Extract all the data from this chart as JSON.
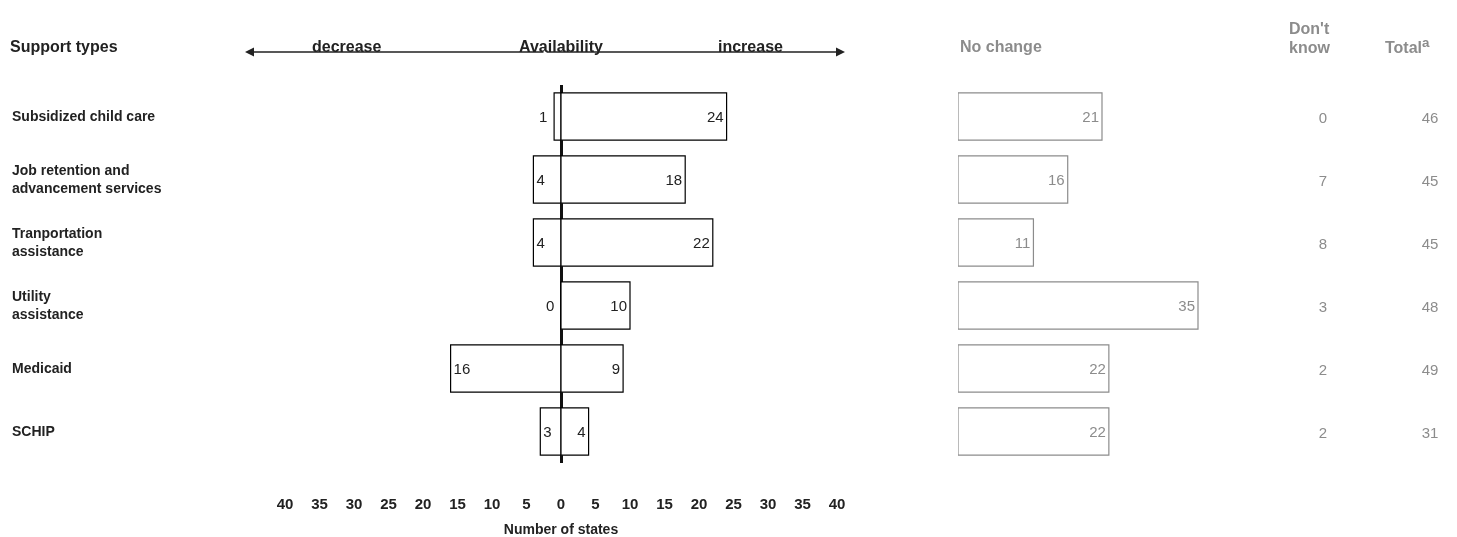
{
  "chart_data": [
    {
      "type": "bar",
      "orientation": "horizontal",
      "title": "Availability",
      "ylabel": "Support types",
      "xlabel": "Number of states",
      "annotations": [
        "decrease",
        "increase"
      ],
      "categories": [
        "Subsidized child care",
        "Job retention and\nadvancement services",
        "Tranportation\nassistance",
        "Utility\nassistance",
        "Medicaid",
        "SCHIP"
      ],
      "series": [
        {
          "color": "#000000",
          "values": [
            1,
            4,
            4,
            0,
            16,
            3
          ],
          "base": [
            -1,
            -4,
            -4,
            0,
            -16,
            -3
          ]
        },
        {
          "color": "#000000",
          "values": [
            24,
            18,
            22,
            10,
            9,
            4
          ]
        }
      ],
      "data_labels": true,
      "xlim": [
        -40,
        40
      ],
      "xticks": [
        {
          "value": -40,
          "label": "40"
        },
        {
          "value": -35,
          "label": "35"
        },
        {
          "value": -30,
          "label": "30"
        },
        {
          "value": -25,
          "label": "25"
        },
        {
          "value": -20,
          "label": "20"
        },
        {
          "value": -15,
          "label": "15"
        },
        {
          "value": -10,
          "label": "10"
        },
        {
          "value": -5,
          "label": "5"
        },
        0,
        5,
        10,
        15,
        20,
        25,
        30,
        35,
        40
      ]
    },
    {
      "type": "bar",
      "orientation": "horizontal",
      "title": "No change",
      "categories": [
        null,
        null,
        null,
        null,
        null,
        null
      ],
      "series": [
        {
          "color": "#8c8c8c",
          "values": [
            21,
            16,
            11,
            35,
            22,
            22
          ]
        }
      ],
      "data_labels": true
    },
    {
      "type": "other",
      "title": "Don't\nknow",
      "color": "#8c8c8c",
      "categories": [
        null,
        null,
        null,
        null,
        null,
        null
      ],
      "values": [
        0,
        7,
        8,
        3,
        2,
        2
      ],
      "data_labels": true
    },
    {
      "type": "other",
      "title": "Total$^{a}$",
      "color": "#8c8c8c",
      "categories": [
        null,
        null,
        null,
        null,
        null,
        null
      ],
      "values": [
        46,
        45,
        45,
        48,
        49,
        31
      ],
      "data_labels": true
    }
  ]
}
